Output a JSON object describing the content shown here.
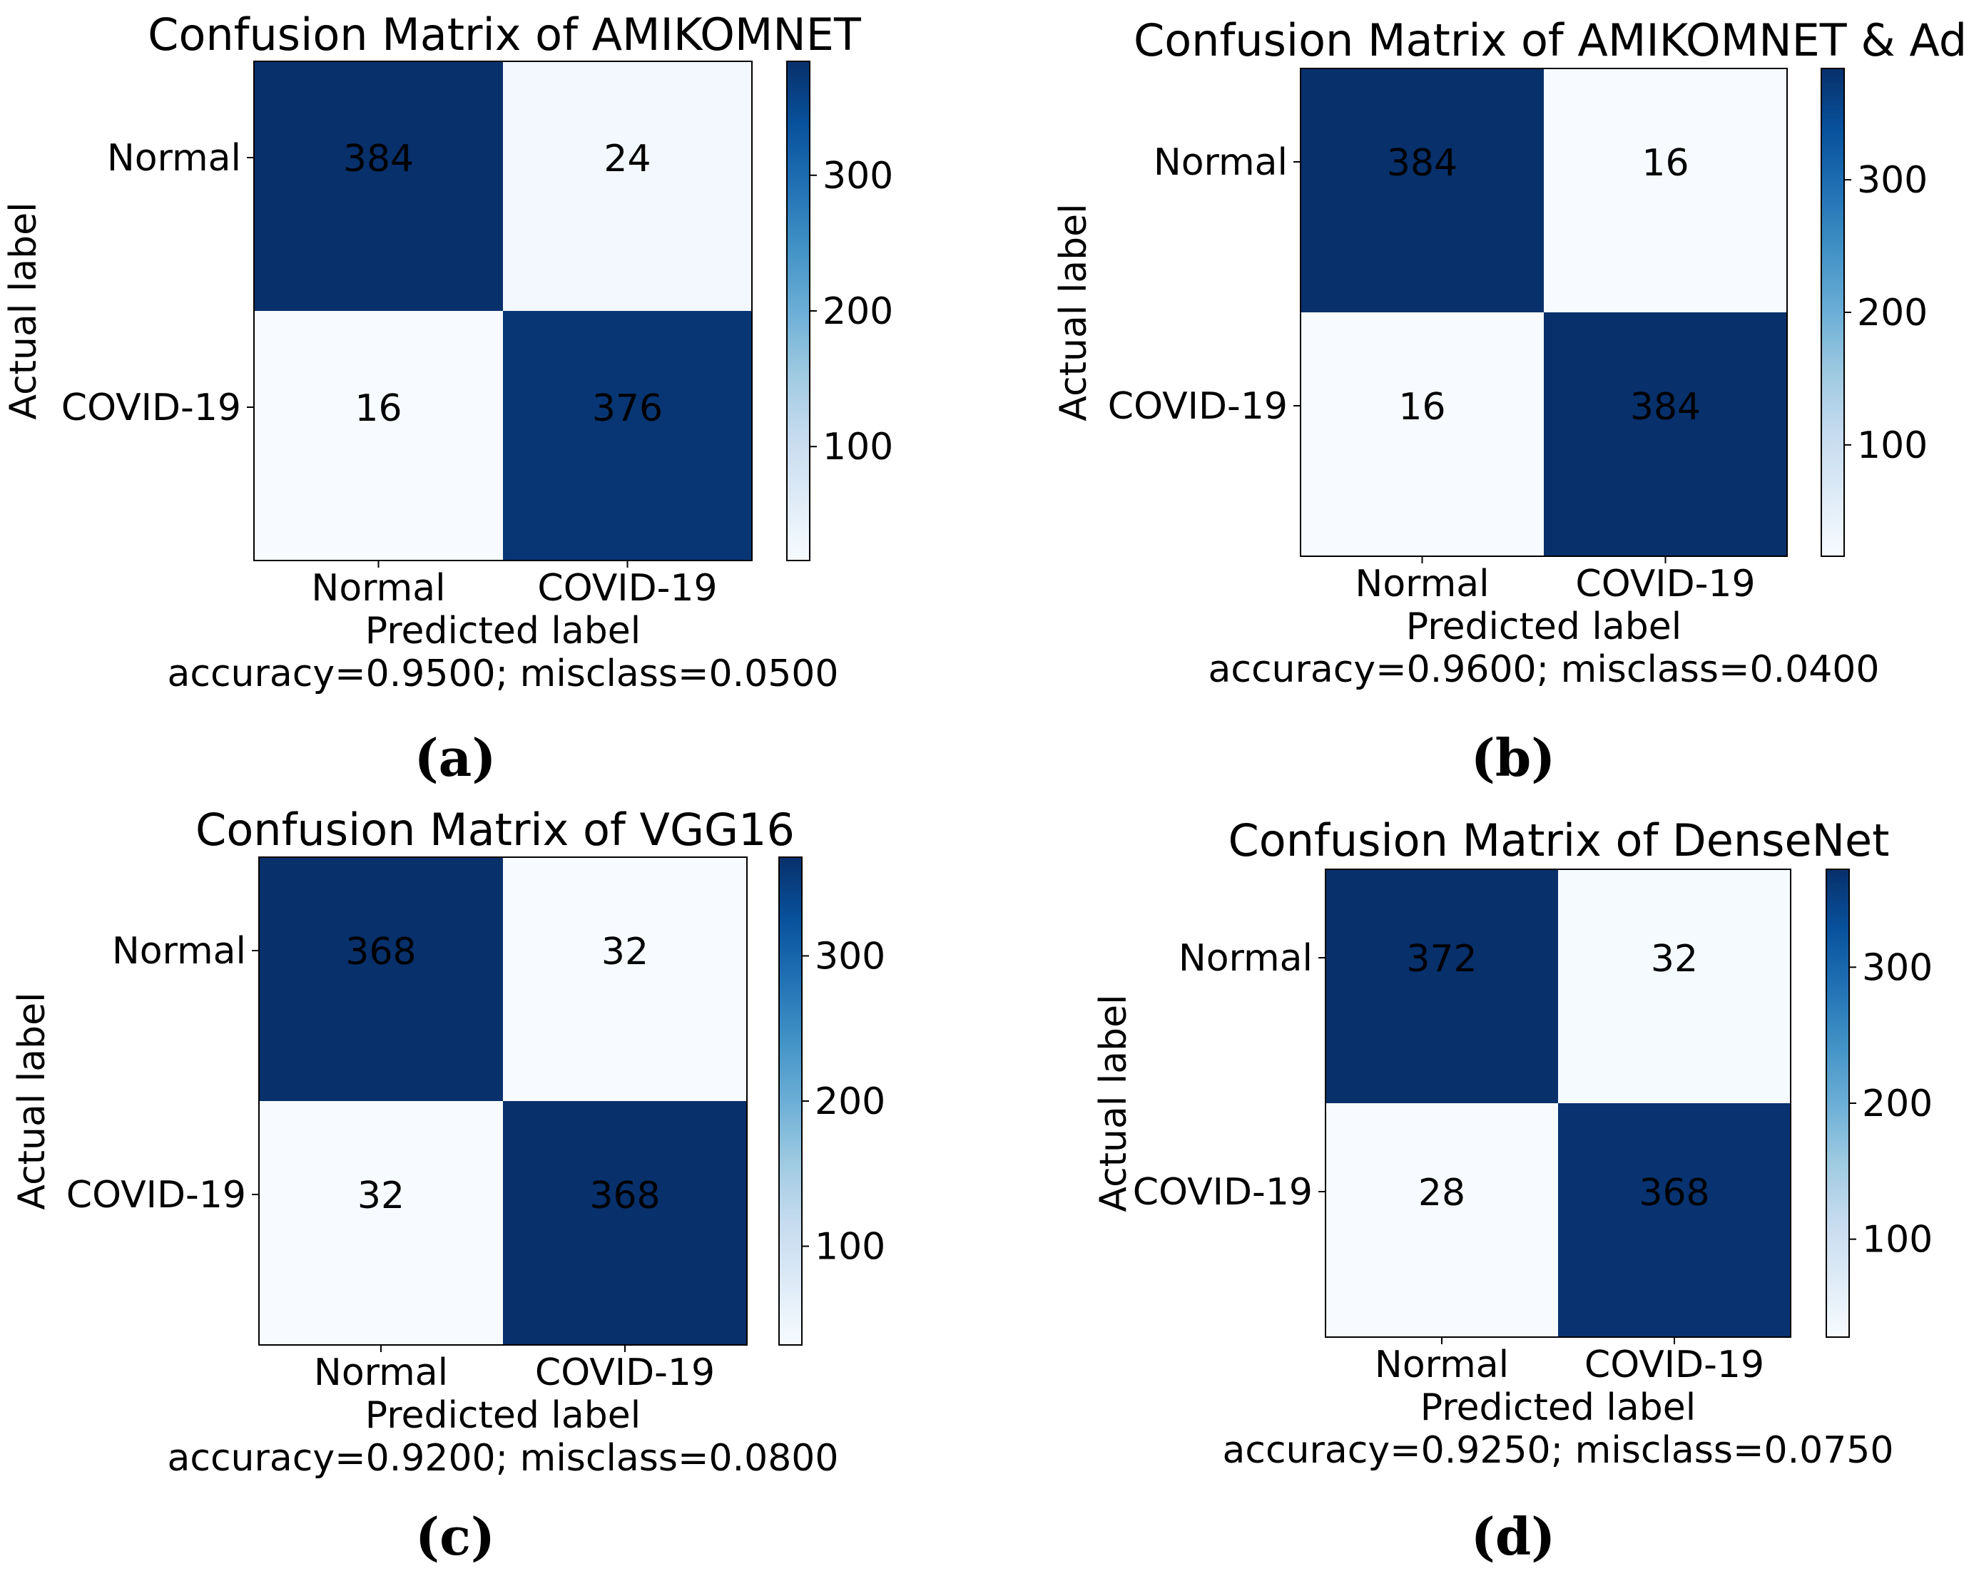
{
  "figure": {
    "colormap": {
      "light": "#f7fbff",
      "mid": "#6baed6",
      "dark": "#08306b"
    },
    "panel_labels": [
      "(a)",
      "(b)",
      "(c)",
      "(d)"
    ]
  },
  "chart_data": [
    {
      "type": "heatmap",
      "title": "Confusion Matrix of AMIKOMNET",
      "xlabel": "Predicted label",
      "ylabel": "Actual label",
      "x_categories": [
        "Normal",
        "COVID-19"
      ],
      "y_categories": [
        "Normal",
        "COVID-19"
      ],
      "matrix": [
        [
          384,
          24
        ],
        [
          16,
          376
        ]
      ],
      "footer": "accuracy=0.9500; misclass=0.0500",
      "colorbar": {
        "vmin": 16,
        "vmax": 384,
        "ticks": [
          "100",
          "200",
          "300"
        ]
      },
      "panel_label": "(a)"
    },
    {
      "type": "heatmap",
      "title": "Confusion Matrix of AMIKOMNET & Ada",
      "xlabel": "Predicted label",
      "ylabel": "Actual label",
      "x_categories": [
        "Normal",
        "COVID-19"
      ],
      "y_categories": [
        "Normal",
        "COVID-19"
      ],
      "matrix": [
        [
          384,
          16
        ],
        [
          16,
          384
        ]
      ],
      "footer": "accuracy=0.9600; misclass=0.0400",
      "colorbar": {
        "vmin": 16,
        "vmax": 384,
        "ticks": [
          "100",
          "200",
          "300"
        ]
      },
      "panel_label": "(b)"
    },
    {
      "type": "heatmap",
      "title": "Confusion Matrix of VGG16",
      "xlabel": "Predicted label",
      "ylabel": "Actual label",
      "x_categories": [
        "Normal",
        "COVID-19"
      ],
      "y_categories": [
        "Normal",
        "COVID-19"
      ],
      "matrix": [
        [
          368,
          32
        ],
        [
          32,
          368
        ]
      ],
      "footer": "accuracy=0.9200; misclass=0.0800",
      "colorbar": {
        "vmin": 32,
        "vmax": 368,
        "ticks": [
          "100",
          "200",
          "300"
        ]
      },
      "panel_label": "(c)"
    },
    {
      "type": "heatmap",
      "title": "Confusion Matrix of DenseNet",
      "xlabel": "Predicted label",
      "ylabel": "Actual label",
      "x_categories": [
        "Normal",
        "COVID-19"
      ],
      "y_categories": [
        "Normal",
        "COVID-19"
      ],
      "matrix": [
        [
          372,
          32
        ],
        [
          28,
          368
        ]
      ],
      "footer": "accuracy=0.9250; misclass=0.0750",
      "colorbar": {
        "vmin": 28,
        "vmax": 372,
        "ticks": [
          "100",
          "200",
          "300"
        ]
      },
      "panel_label": "(d)"
    }
  ]
}
